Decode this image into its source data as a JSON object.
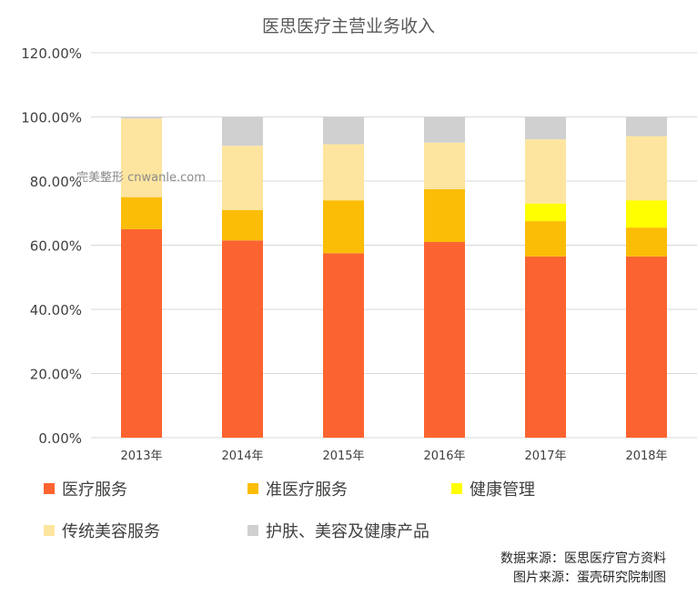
{
  "chart_data": {
    "type": "bar",
    "stacked": true,
    "title": "医思医疗主营业务收入",
    "categories": [
      "2013年",
      "2014年",
      "2015年",
      "2016年",
      "2017年",
      "2018年"
    ],
    "ylim": [
      0,
      120
    ],
    "yticks": [
      "0.00%",
      "20.00%",
      "40.00%",
      "60.00%",
      "80.00%",
      "100.00%",
      "120.00%"
    ],
    "grid": true,
    "legend_position": "bottom",
    "series": [
      {
        "name": "医疗服务",
        "color": "#fb6430",
        "values": [
          65.0,
          61.5,
          57.5,
          61.0,
          56.5,
          56.5
        ]
      },
      {
        "name": "准医疗服务",
        "color": "#fbbd06",
        "values": [
          10.0,
          9.5,
          16.5,
          16.5,
          11.0,
          9.0
        ]
      },
      {
        "name": "健康管理",
        "color": "#ffff00",
        "values": [
          0.0,
          0.0,
          0.0,
          0.0,
          5.5,
          8.5
        ]
      },
      {
        "name": "传统美容服务",
        "color": "#fee59f",
        "values": [
          24.5,
          20.0,
          17.5,
          14.5,
          20.0,
          20.0
        ]
      },
      {
        "name": "护肤、美容及健康产品",
        "color": "#d0d0d0",
        "values": [
          0.5,
          9.0,
          8.5,
          8.0,
          7.0,
          6.0
        ]
      }
    ]
  },
  "source": {
    "data_line": "数据来源：医思医疗官方资料",
    "image_line": "图片来源：蛋壳研究院制图"
  },
  "watermark": "完美整形 cnwanle.com"
}
